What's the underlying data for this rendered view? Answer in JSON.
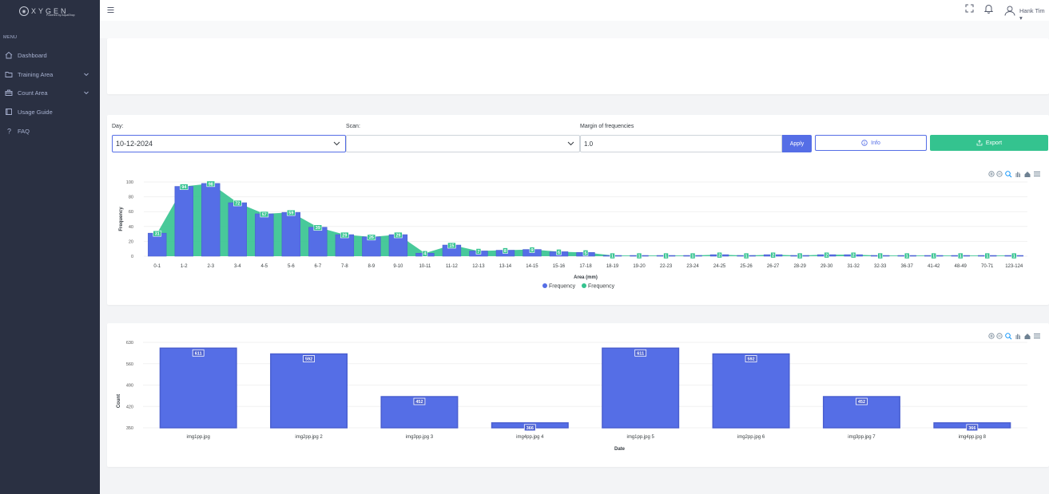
{
  "app": {
    "logo_text": "XYGEN",
    "logo_sub": "Powered by AquaShop"
  },
  "sidebar": {
    "menu_title": "MENU",
    "items": [
      {
        "label": "Dashboard",
        "icon": "home-icon"
      },
      {
        "label": "Training Area",
        "icon": "folder-icon",
        "expandable": true
      },
      {
        "label": "Count Area",
        "icon": "briefcase-icon",
        "expandable": true
      },
      {
        "label": "Usage Guide",
        "icon": "book-icon"
      },
      {
        "label": "FAQ",
        "icon": "question-icon"
      }
    ]
  },
  "header": {
    "user_name": "Hank Tim"
  },
  "filters": {
    "day_label": "Day:",
    "day_value": "10-12-2024",
    "scan_label": "Scan:",
    "scan_value": "",
    "margin_label": "Margin of frequencies",
    "margin_value": "1.0",
    "apply_label": "Apply",
    "info_label": "Info",
    "export_label": "Export"
  },
  "colors": {
    "blue": "#556ee6",
    "green": "#34c38f",
    "sidebar": "#2a3042"
  },
  "chart_data": [
    {
      "type": "bar",
      "xlabel": "Area (mm)",
      "ylabel": "Frequency",
      "ylim": [
        0,
        100
      ],
      "yticks": [
        0,
        20,
        40,
        60,
        80,
        100
      ],
      "categories": [
        "0-1",
        "1-2",
        "2-3",
        "3-4",
        "4-5",
        "5-6",
        "6-7",
        "7-8",
        "8-9",
        "9-10",
        "10-11",
        "11-12",
        "12-13",
        "13-14",
        "14-15",
        "15-16",
        "17-18",
        "18-19",
        "19-20",
        "22-23",
        "23-24",
        "24-25",
        "25-26",
        "26-27",
        "28-29",
        "29-30",
        "31-32",
        "32-33",
        "36-37",
        "41-42",
        "48-49",
        "70-71",
        "123-124"
      ],
      "series": [
        {
          "name": "Frequency",
          "kind": "bar",
          "color": "#556ee6",
          "values": [
            31,
            94,
            98,
            72,
            57,
            59,
            39,
            29,
            26,
            29,
            4,
            15,
            7,
            8,
            9,
            6,
            5,
            1,
            1,
            1,
            1,
            2,
            1,
            2,
            1,
            2,
            2,
            1,
            1,
            1,
            1,
            1,
            1
          ]
        },
        {
          "name": "Frequency",
          "kind": "area",
          "color": "#34c38f",
          "values": [
            31,
            94,
            98,
            72,
            57,
            59,
            39,
            29,
            26,
            29,
            4,
            15,
            7,
            8,
            9,
            6,
            5,
            1,
            1,
            1,
            1,
            2,
            1,
            2,
            1,
            2,
            2,
            1,
            1,
            1,
            1,
            1,
            1
          ]
        }
      ],
      "legend": [
        "Frequency",
        "Frequency"
      ],
      "legend_position": "bottom-center"
    },
    {
      "type": "bar",
      "xlabel": "Date",
      "ylabel": "Count",
      "ylim": [
        350,
        630
      ],
      "yticks": [
        350,
        420,
        490,
        560,
        630
      ],
      "categories": [
        "img1pp.jpg",
        "img2pp.jpg 2",
        "img3pp.jpg 3",
        "img4pp.jpg 4",
        "img1pp.jpg 5",
        "img2pp.jpg 6",
        "img3pp.jpg 7",
        "img4pp.jpg 8"
      ],
      "series": [
        {
          "name": "Count",
          "color": "#556ee6",
          "values": [
            611,
            592,
            452,
            366,
            611,
            592,
            452,
            366
          ]
        }
      ]
    }
  ]
}
